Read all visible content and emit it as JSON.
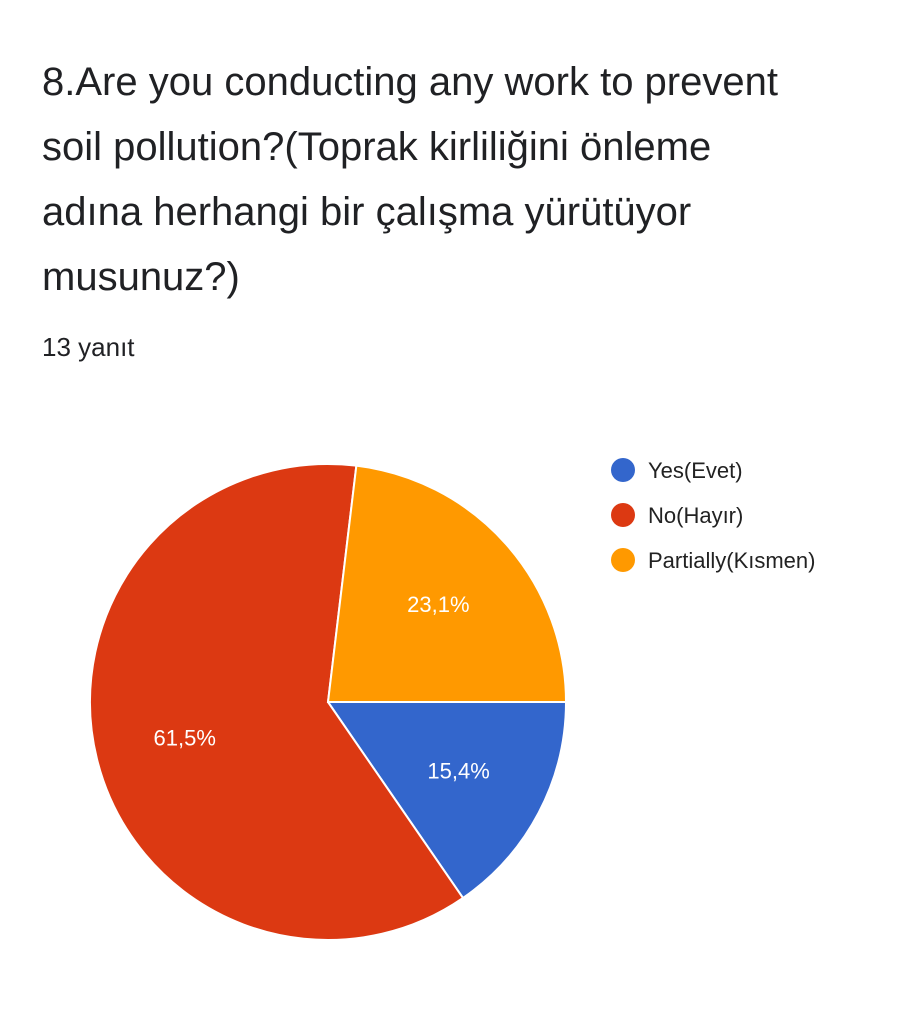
{
  "question": {
    "title": "8.Are you conducting any work to prevent soil pollution?(Toprak kirliliğini önleme adına herhangi bir çalışma yürütüyor musunuz?)",
    "response_count": "13 yanıt"
  },
  "chart_data": {
    "type": "pie",
    "title": "",
    "legend_position": "right",
    "start_angle": "3 o'clock, clockwise",
    "slices": [
      {
        "name": "Yes(Evet)",
        "value": 15.4,
        "label": "15,4%",
        "color": "#3366cc"
      },
      {
        "name": "No(Hayır)",
        "value": 61.5,
        "label": "61,5%",
        "color": "#dc3912"
      },
      {
        "name": "Partially(Kısmen)",
        "value": 23.1,
        "label": "23,1%",
        "color": "#ff9900"
      }
    ]
  }
}
